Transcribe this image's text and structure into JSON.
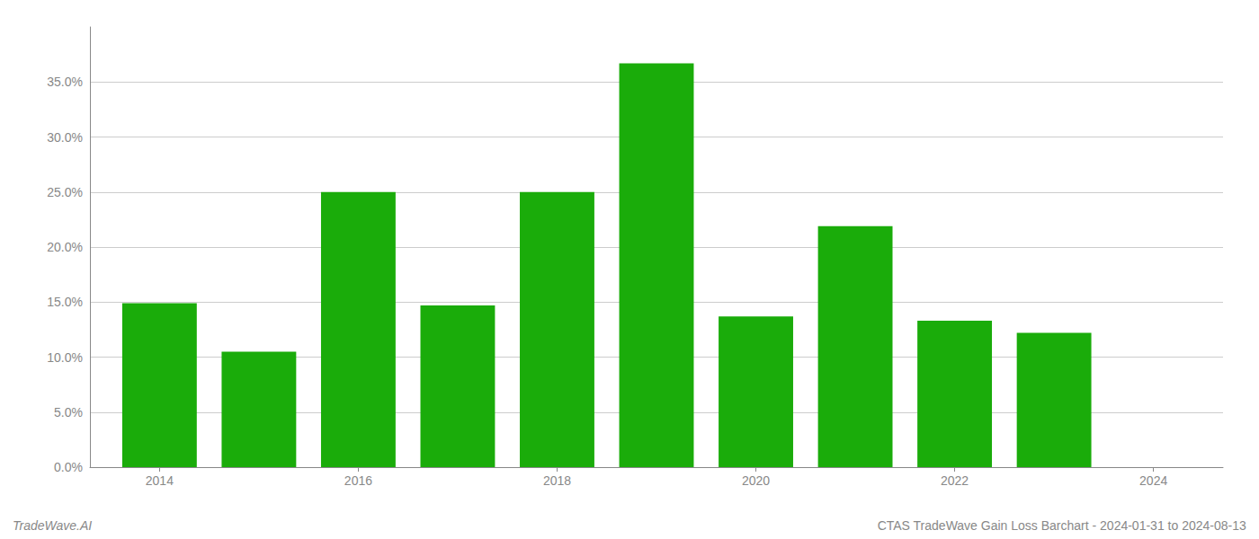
{
  "chart_data": {
    "type": "bar",
    "x": [
      2014,
      2015,
      2016,
      2017,
      2018,
      2019,
      2020,
      2021,
      2022,
      2023
    ],
    "values": [
      0.149,
      0.105,
      0.25,
      0.147,
      0.25,
      0.367,
      0.137,
      0.219,
      0.133,
      0.122
    ],
    "color": "#1aac0a",
    "xlim": [
      2013.3,
      2024.7
    ],
    "xticks": [
      2014,
      2016,
      2018,
      2020,
      2022,
      2024
    ],
    "ylim": [
      0,
      0.4
    ],
    "yticks": [
      {
        "value": 0.0,
        "label": "0.0%"
      },
      {
        "value": 0.05,
        "label": "5.0%"
      },
      {
        "value": 0.1,
        "label": "10.0%"
      },
      {
        "value": 0.15,
        "label": "15.0%"
      },
      {
        "value": 0.2,
        "label": "20.0%"
      },
      {
        "value": 0.25,
        "label": "25.0%"
      },
      {
        "value": 0.3,
        "label": "30.0%"
      },
      {
        "value": 0.35,
        "label": "35.0%"
      }
    ],
    "grid": true,
    "annotations": [
      "TradeWave.AI",
      "CTAS TradeWave Gain Loss Barchart - 2024-01-31 to 2024-08-13"
    ]
  }
}
